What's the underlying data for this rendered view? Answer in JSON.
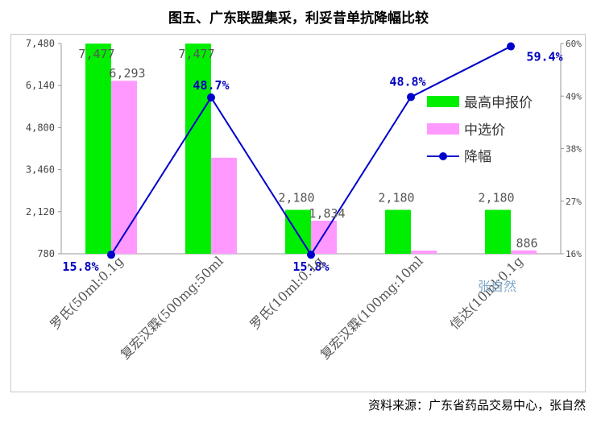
{
  "title": "图五、广东联盟集采，利妥昔单抗降幅比较",
  "source": "资料来源：广东省药品交易中心，张自然",
  "watermark": "张自然",
  "colors": {
    "max_price": "#00ee00",
    "selected_price": "#ff99ff",
    "drop": "#0000cc"
  },
  "chart_data": {
    "type": "bar",
    "categories": [
      "罗氏(50ml:0.1g",
      "复宏汉霖(500mg:50ml",
      "罗氏(10ml:0.1g",
      "复宏汉霖(100mg:10ml",
      "信达(10ml:0.1g"
    ],
    "series": [
      {
        "name": "最高申报价",
        "type": "bar",
        "axis": "left",
        "values": [
          7477,
          7477,
          2180,
          2180,
          2180
        ],
        "labels": [
          "7,477",
          "7,477",
          "2,180",
          "2,180",
          "2,180"
        ]
      },
      {
        "name": "中选价",
        "type": "bar",
        "axis": "left",
        "values": [
          6293,
          3840,
          1834,
          880,
          886
        ],
        "labels": [
          "6,293",
          "",
          "1,834",
          "",
          "886"
        ]
      },
      {
        "name": "降幅",
        "type": "line",
        "axis": "right",
        "values": [
          15.8,
          48.7,
          15.8,
          48.8,
          59.4
        ],
        "labels": [
          "15.8%",
          "48.7%",
          "15.8%",
          "48.8%",
          "59.4%"
        ]
      }
    ],
    "y_left": {
      "min": 780,
      "max": 7480,
      "ticks": [
        "780",
        "2,120",
        "3,460",
        "4,800",
        "6,140",
        "7,480"
      ]
    },
    "y_right": {
      "min": 16,
      "max": 60,
      "ticks": [
        "16%",
        "27%",
        "38%",
        "49%",
        "60%"
      ]
    },
    "legend_position": "right",
    "grid": false
  }
}
